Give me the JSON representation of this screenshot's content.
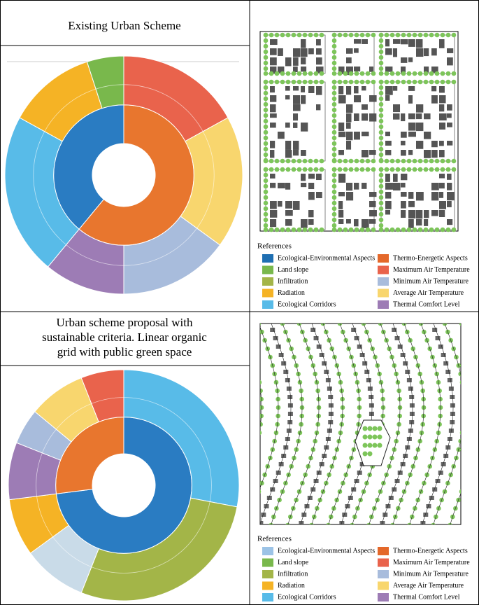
{
  "panels": [
    {
      "title": "Existing Urban Scheme",
      "sunburst": {
        "inner": [
          {
            "color": "#e8762e",
            "value": 61
          },
          {
            "color": "#2a7cc2",
            "value": 39
          }
        ],
        "outer": [
          {
            "color": "#e9634c",
            "value": 17
          },
          {
            "color": "#f8d66e",
            "value": 18
          },
          {
            "color": "#a8bcdc",
            "value": 15
          },
          {
            "color": "#9d7cb5",
            "value": 11
          },
          {
            "color": "#58bbe8",
            "value": 22
          },
          {
            "color": "#f5b325",
            "value": 12
          },
          {
            "color": "#79b84c",
            "value": 5
          }
        ]
      }
    },
    {
      "title": "Urban scheme proposal with sustainable criteria. Linear organic grid with public green space",
      "sunburst": {
        "inner": [
          {
            "color": "#2a7cc2",
            "value": 73
          },
          {
            "color": "#e8762e",
            "value": 27
          }
        ],
        "outer": [
          {
            "color": "#58bbe8",
            "value": 28
          },
          {
            "color": "#a3b548",
            "value": 28
          },
          {
            "color": "#c9dbe8",
            "value": 9
          },
          {
            "color": "#f5b325",
            "value": 8
          },
          {
            "color": "#9d7cb5",
            "value": 8
          },
          {
            "color": "#a8bcdc",
            "value": 5
          },
          {
            "color": "#f8d66e",
            "value": 8
          },
          {
            "color": "#e9634c",
            "value": 6
          }
        ]
      }
    }
  ],
  "legends": [
    {
      "title": "References",
      "items": [
        {
          "label": "Ecological-Environmental Aspects",
          "color": "#1f6fb2"
        },
        {
          "label": "Thermo-Energetic Aspects",
          "color": "#e4682a"
        },
        {
          "label": "Land slope",
          "color": "#79b84c"
        },
        {
          "label": "Maximum Air Temperature",
          "color": "#e9634c"
        },
        {
          "label": "Infiltration",
          "color": "#a3b548"
        },
        {
          "label": "Minimum Air Temperature",
          "color": "#a8bcdc"
        },
        {
          "label": "Radiation",
          "color": "#f5b325"
        },
        {
          "label": "Average Air Temperature",
          "color": "#f8d66e"
        },
        {
          "label": "Ecological Corridors",
          "color": "#58bbe8"
        },
        {
          "label": "Thermal Comfort Level",
          "color": "#9d7cb5"
        }
      ]
    },
    {
      "title": "References",
      "items": [
        {
          "label": "Ecological-Environmental Aspects",
          "color": "#9cc3e6"
        },
        {
          "label": "Thermo-Energetic Aspects",
          "color": "#e4682a"
        },
        {
          "label": "Land slope",
          "color": "#79b84c"
        },
        {
          "label": "Maximum Air Temperature",
          "color": "#e9634c"
        },
        {
          "label": "Infiltration",
          "color": "#a3b548"
        },
        {
          "label": "Minimum Air Temperature",
          "color": "#a8bcdc"
        },
        {
          "label": "Radiation",
          "color": "#f5b325"
        },
        {
          "label": "Average Air Temperature",
          "color": "#f8d66e"
        },
        {
          "label": "Ecological Corridors",
          "color": "#58bbe8"
        },
        {
          "label": "Thermal Comfort Level",
          "color": "#9d7cb5"
        }
      ]
    }
  ]
}
